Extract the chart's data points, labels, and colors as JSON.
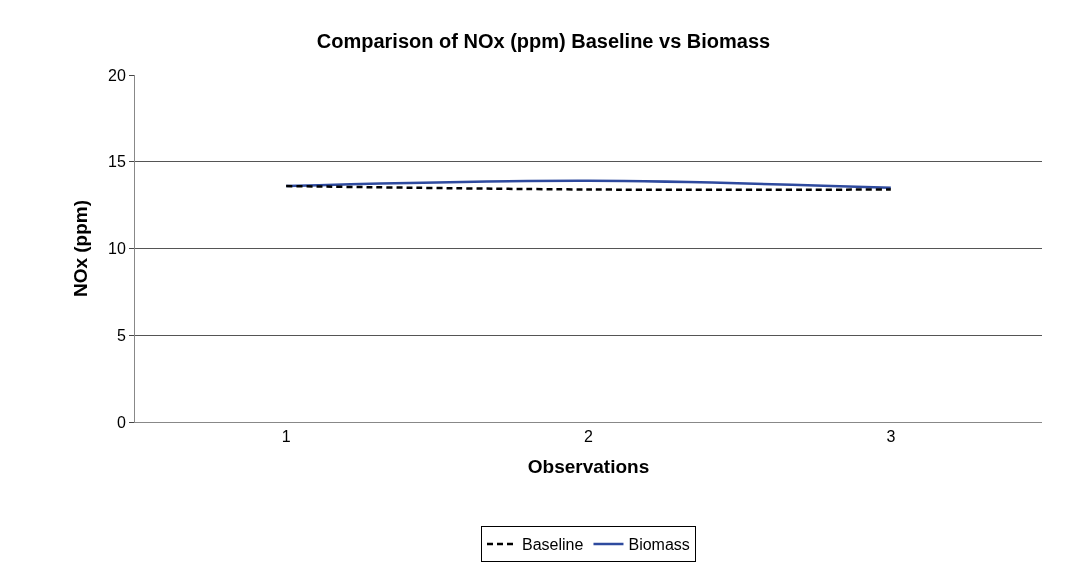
{
  "chart_data": {
    "type": "line",
    "title": "Comparison of NOx (ppm) Baseline vs Biomass",
    "xlabel": "Observations",
    "ylabel": "NOx (ppm)",
    "categories": [
      "1",
      "2",
      "3"
    ],
    "series": [
      {
        "name": "Baseline",
        "color": "#000000",
        "line_style": "dashed",
        "values": [
          13.6,
          13.4,
          13.4
        ]
      },
      {
        "name": "Biomass",
        "color": "#2e4a9e",
        "line_style": "solid",
        "values": [
          13.6,
          13.9,
          13.5
        ]
      }
    ],
    "ylim": [
      0,
      20
    ],
    "yticks": [
      0,
      5,
      10,
      15,
      20
    ],
    "grid": "y",
    "legend": "bottom",
    "marker": "none"
  }
}
